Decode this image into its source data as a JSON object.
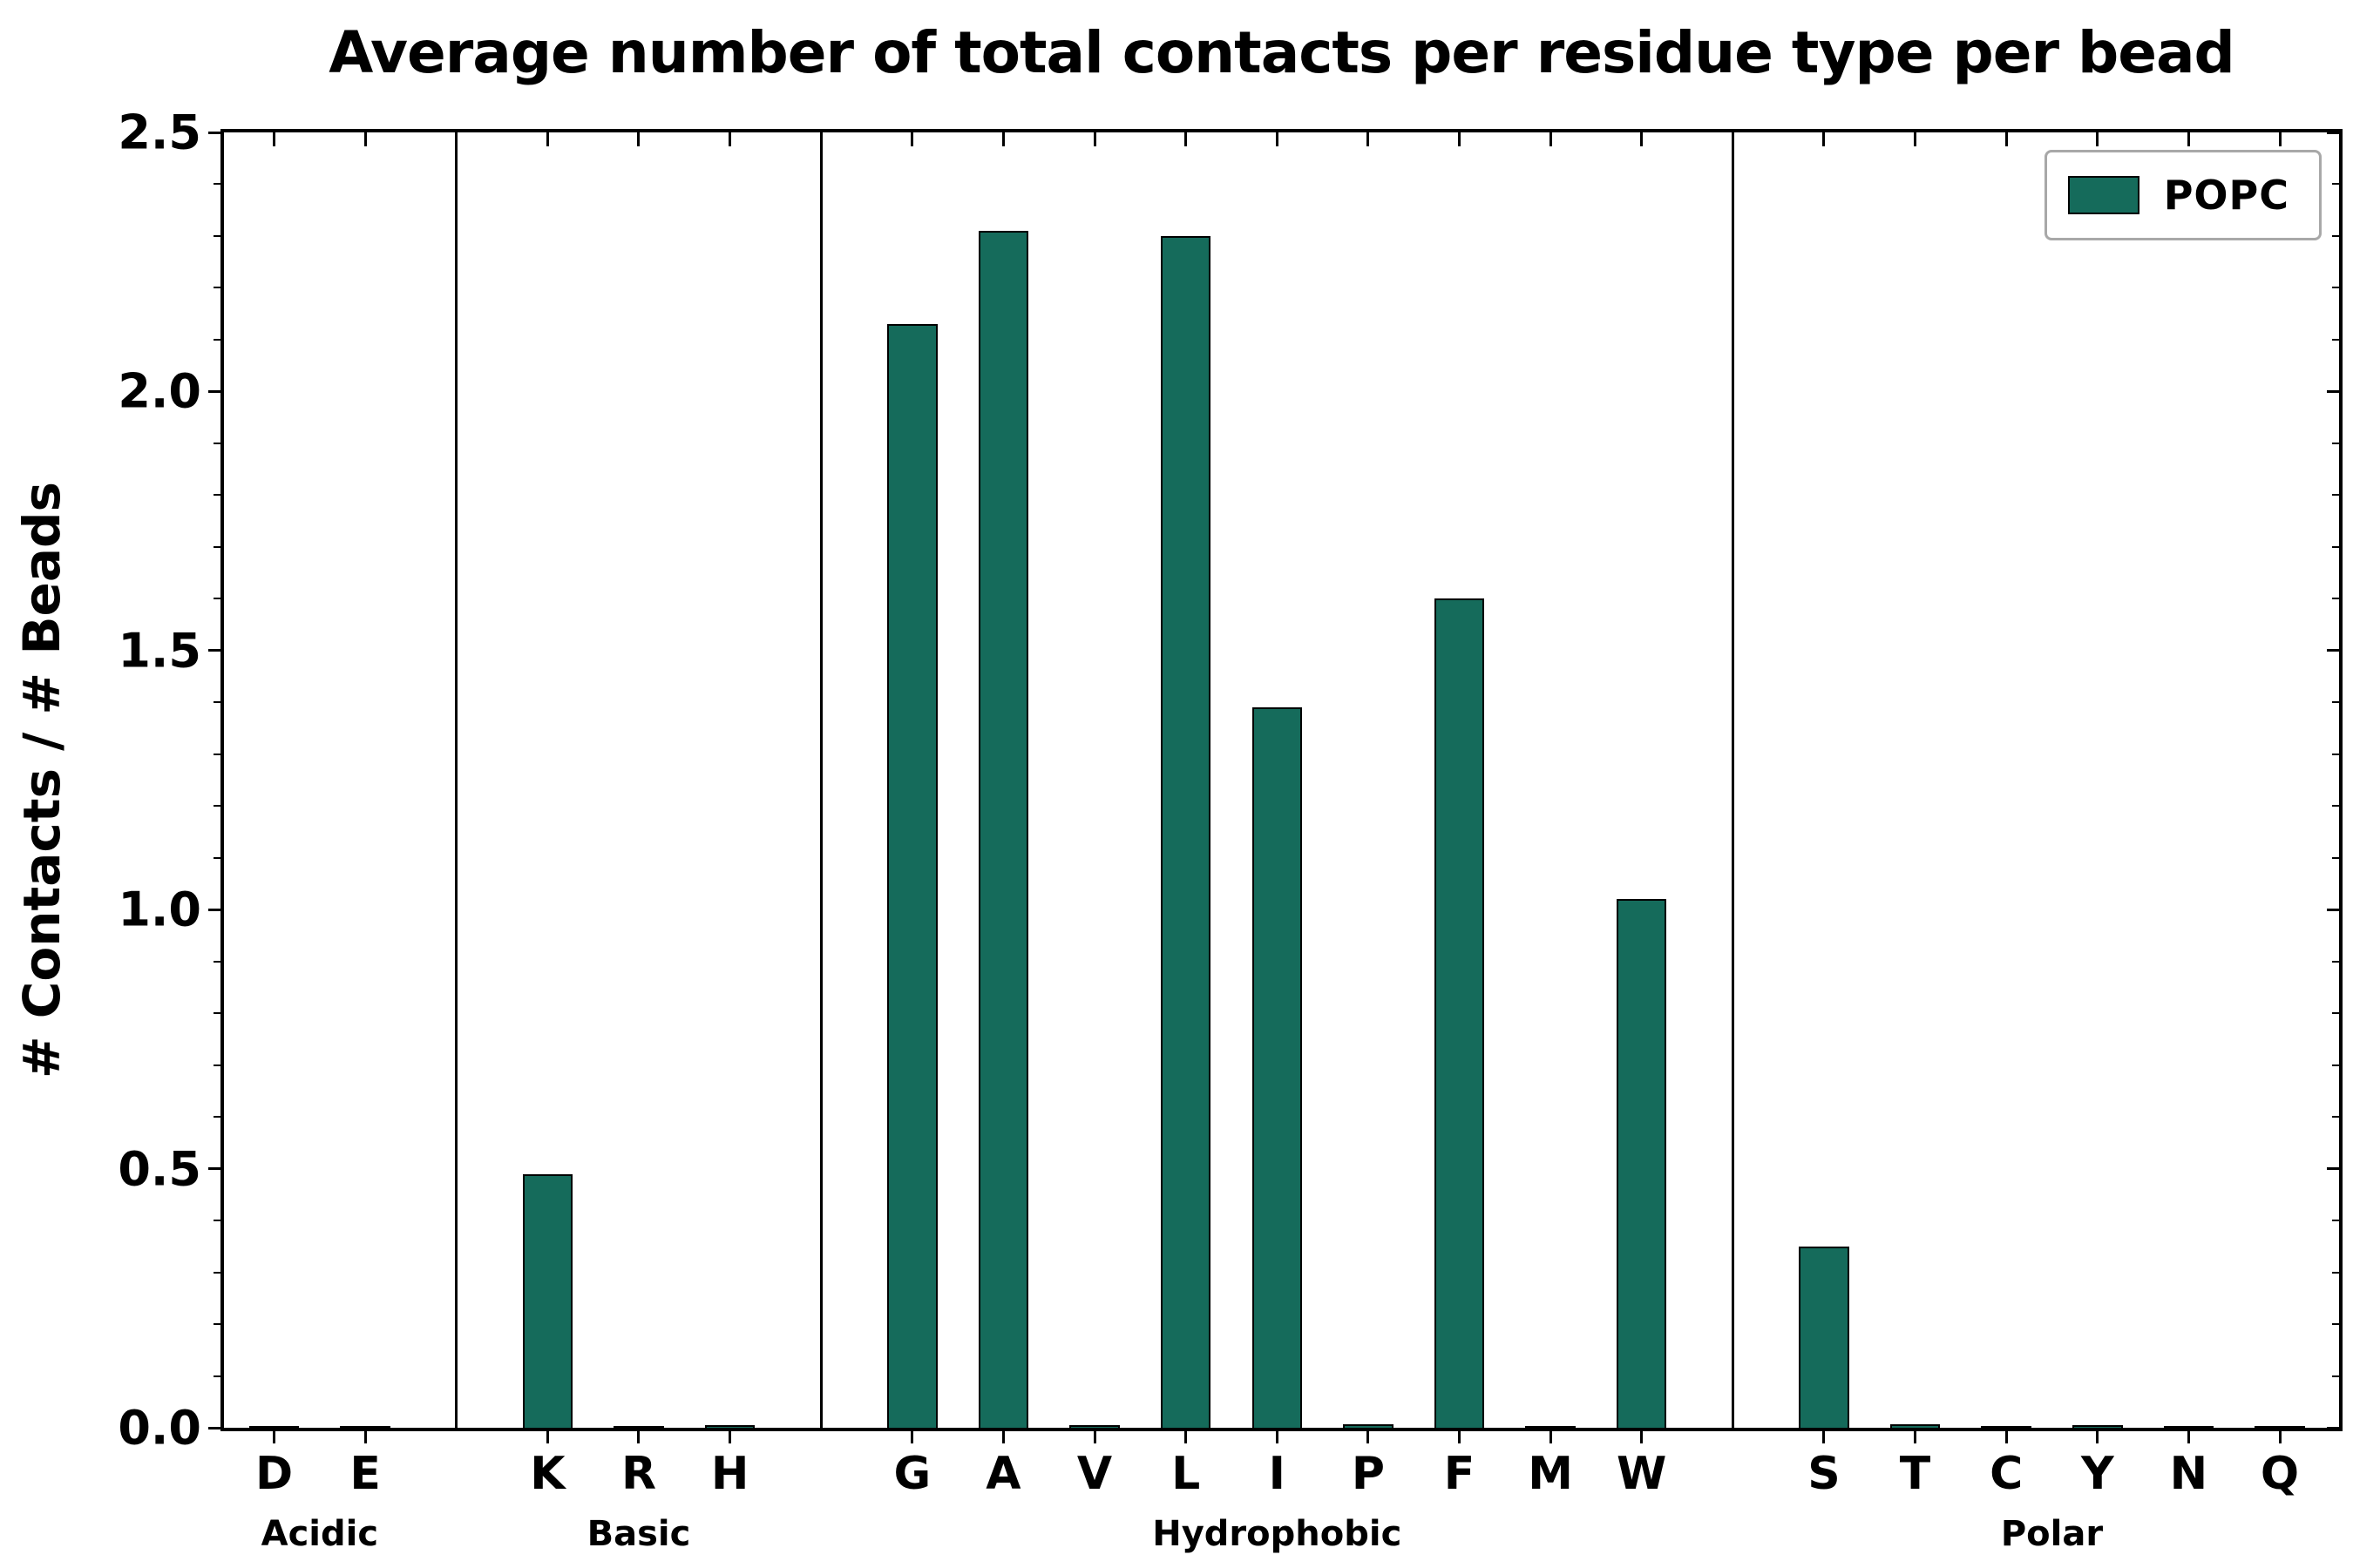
{
  "title": "Average number of total contacts per residue type per bead",
  "ylabel": "# Contacts / # Beads",
  "legend": {
    "label": "POPC",
    "color": "#156b5b"
  },
  "colors": {
    "bar": "#156b5b",
    "bar_edge": "#000000",
    "axis": "#000000"
  },
  "chart_data": {
    "type": "bar",
    "title": "Average number of total contacts per residue type per bead",
    "xlabel": "",
    "ylabel": "# Contacts / # Beads",
    "ylim": [
      0,
      2.5
    ],
    "yticks": [
      0.0,
      0.5,
      1.0,
      1.5,
      2.0,
      2.5
    ],
    "ytick_labels": [
      "0.0",
      "0.5",
      "1.0",
      "1.5",
      "2.0",
      "2.5"
    ],
    "legend_position": "upper right",
    "grid": false,
    "series_name": "POPC",
    "groups": [
      {
        "label": "Acidic",
        "residues": [
          "D",
          "E"
        ],
        "values": [
          0.004,
          0.004
        ]
      },
      {
        "label": "Basic",
        "residues": [
          "K",
          "R",
          "H"
        ],
        "values": [
          0.49,
          0.003,
          0.005
        ]
      },
      {
        "label": "Hydrophobic",
        "residues": [
          "G",
          "A",
          "V",
          "L",
          "I",
          "P",
          "F",
          "M",
          "W"
        ],
        "values": [
          2.13,
          2.31,
          0.005,
          2.3,
          1.39,
          0.007,
          1.6,
          0.003,
          1.02
        ]
      },
      {
        "label": "Polar",
        "residues": [
          "S",
          "T",
          "C",
          "Y",
          "N",
          "Q"
        ],
        "values": [
          0.35,
          0.006,
          0.003,
          0.005,
          0.004,
          0.003
        ]
      }
    ]
  }
}
